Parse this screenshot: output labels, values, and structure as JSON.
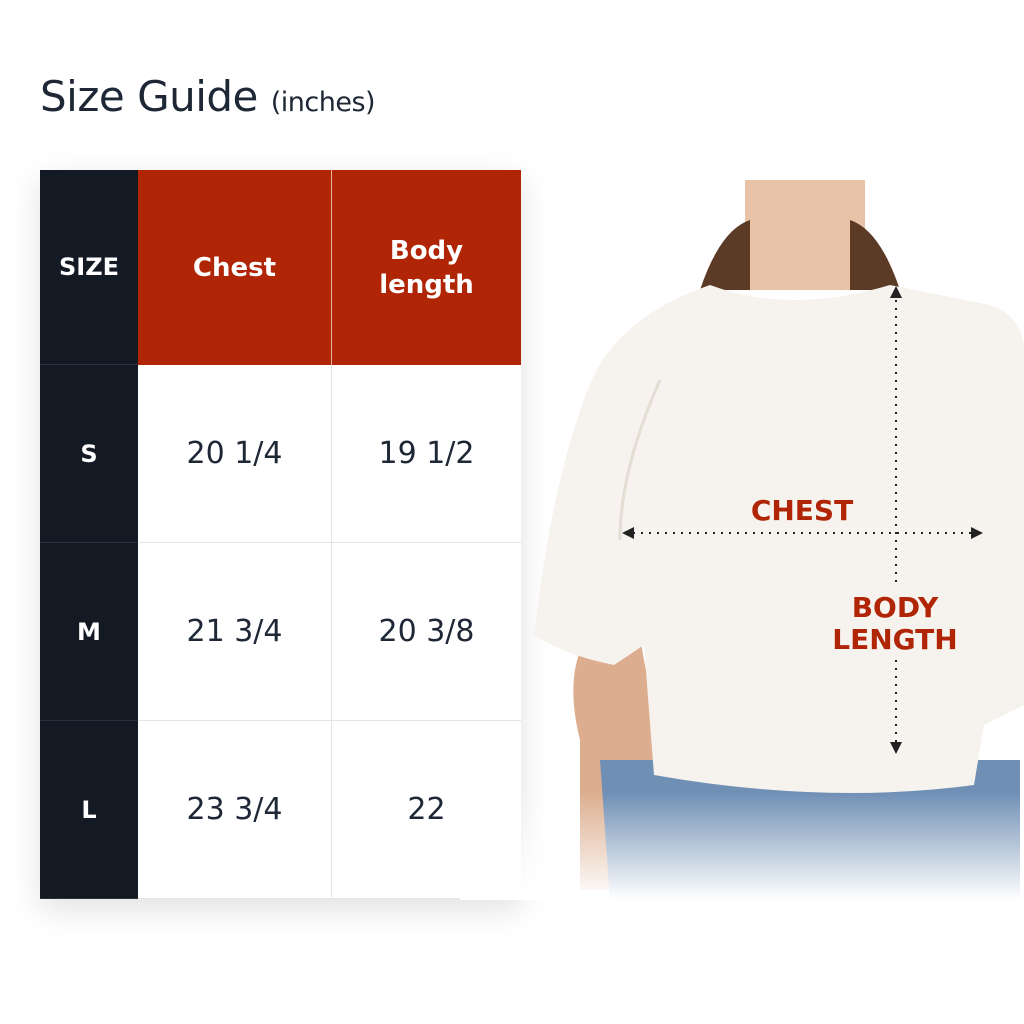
{
  "title": {
    "main": "Size Guide",
    "unit": "(inches)"
  },
  "table": {
    "headers": [
      "SIZE",
      "Chest",
      "Body length"
    ],
    "rows": [
      {
        "size": "S",
        "chest": "20 1/4",
        "body_length": "19 1/2"
      },
      {
        "size": "M",
        "chest": "21 3/4",
        "body_length": "20 3/8"
      },
      {
        "size": "L",
        "chest": "23 3/4",
        "body_length": "22"
      }
    ]
  },
  "diagram": {
    "chest_label": "CHEST",
    "body_length_label_line1": "BODY",
    "body_length_label_line2": "LENGTH"
  },
  "colors": {
    "accent": "#b02506",
    "dark": "#131a24",
    "text": "#1e2735"
  }
}
